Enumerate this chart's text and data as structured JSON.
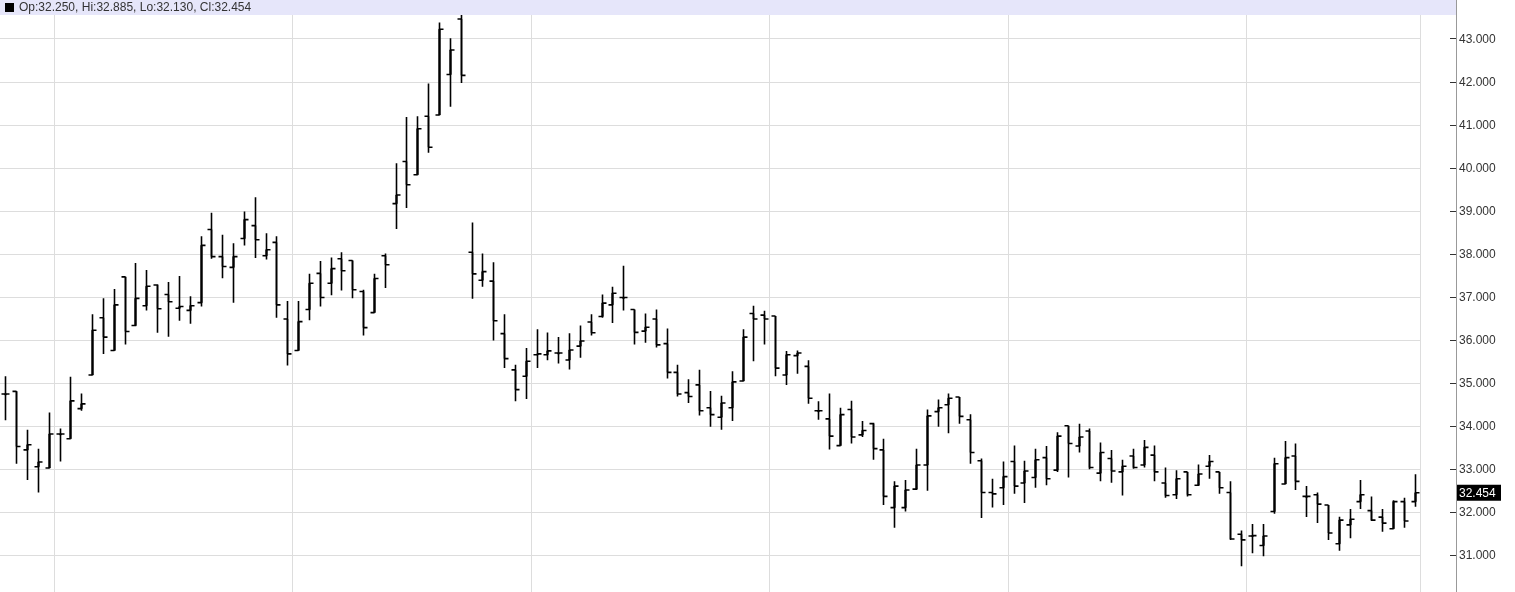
{
  "chart_data": {
    "type": "candlestick",
    "title": "Op:32.250, Hi:32.885, Lo:32.130, Cl:32.454",
    "categories": [
      null,
      null,
      null,
      null,
      null,
      null,
      null,
      null,
      null,
      null,
      null,
      null,
      null,
      null,
      null,
      null,
      null,
      null,
      null,
      null,
      null,
      null,
      null,
      null,
      null,
      null,
      null,
      null,
      null,
      null,
      null,
      null,
      null,
      null,
      null,
      null,
      null,
      null,
      null,
      null,
      null,
      null,
      null,
      null,
      null,
      null,
      null,
      null,
      null,
      null,
      null,
      null,
      null,
      null,
      null,
      null,
      null,
      null,
      null,
      null,
      null,
      null,
      null,
      null,
      null,
      null,
      null,
      null,
      null,
      null,
      null,
      null,
      null,
      null,
      null,
      null,
      null,
      null,
      null,
      null,
      null,
      null,
      null,
      null,
      null,
      null,
      null,
      null,
      null,
      null,
      null,
      null,
      null,
      null,
      null,
      null,
      null,
      null,
      null,
      null,
      null,
      null,
      null,
      null,
      null,
      null,
      null,
      null,
      null,
      null,
      null,
      null,
      null,
      null,
      null,
      null,
      null,
      null,
      null,
      null,
      null,
      null,
      null,
      null,
      null,
      null,
      null,
      null,
      null,
      null,
      null
    ],
    "ohlc": [
      [
        34.75,
        35.16,
        34.14,
        34.75
      ],
      [
        34.81,
        34.81,
        33.13,
        33.53
      ],
      [
        33.45,
        33.92,
        32.75,
        33.57
      ],
      [
        33.06,
        33.48,
        32.46,
        33.17
      ],
      [
        33.03,
        34.32,
        33.03,
        33.82
      ],
      [
        33.82,
        33.95,
        33.18,
        33.82
      ],
      [
        33.71,
        35.15,
        33.71,
        34.59
      ],
      [
        34.41,
        34.76,
        34.36,
        34.52
      ],
      [
        35.19,
        36.6,
        35.19,
        36.23
      ],
      [
        36.52,
        36.97,
        35.68,
        36.07
      ],
      [
        35.76,
        37.19,
        35.76,
        36.82
      ],
      [
        37.47,
        37.47,
        35.9,
        36.2
      ],
      [
        36.34,
        37.79,
        36.32,
        36.97
      ],
      [
        36.8,
        37.63,
        36.69,
        37.25
      ],
      [
        37.28,
        37.3,
        36.17,
        36.73
      ],
      [
        37.06,
        37.35,
        36.08,
        36.89
      ],
      [
        36.74,
        37.49,
        36.45,
        36.78
      ],
      [
        36.69,
        37.02,
        36.38,
        36.8
      ],
      [
        36.87,
        38.41,
        36.78,
        38.2
      ],
      [
        38.57,
        38.96,
        37.89,
        37.94
      ],
      [
        37.94,
        38.45,
        37.44,
        37.71
      ],
      [
        37.69,
        38.25,
        36.87,
        37.94
      ],
      [
        38.36,
        38.99,
        38.2,
        38.8
      ],
      [
        38.66,
        39.32,
        37.91,
        38.33
      ],
      [
        37.96,
        38.48,
        37.87,
        38.1
      ],
      [
        38.27,
        38.41,
        36.52,
        36.82
      ],
      [
        36.49,
        36.91,
        35.41,
        35.68
      ],
      [
        35.76,
        36.91,
        35.76,
        36.43
      ],
      [
        36.71,
        37.54,
        36.46,
        37.32
      ],
      [
        37.55,
        37.84,
        36.78,
        36.99
      ],
      [
        37.32,
        37.92,
        37.04,
        37.66
      ],
      [
        37.89,
        38.04,
        37.15,
        37.61
      ],
      [
        37.85,
        37.85,
        36.97,
        37.17
      ],
      [
        37.13,
        37.17,
        36.11,
        36.29
      ],
      [
        36.64,
        37.54,
        36.64,
        37.43
      ],
      [
        37.96,
        38.01,
        37.21,
        37.75
      ],
      [
        39.17,
        40.11,
        38.58,
        39.37
      ],
      [
        40.15,
        41.18,
        39.07,
        39.61
      ],
      [
        39.84,
        41.2,
        39.84,
        40.91
      ],
      [
        41.2,
        41.96,
        40.35,
        40.48
      ],
      [
        41.23,
        43.38,
        41.23,
        43.22
      ],
      [
        42.17,
        43.01,
        41.42,
        42.74
      ],
      [
        43.46,
        43.6,
        41.97,
        42.15
      ],
      [
        38.04,
        38.73,
        36.96,
        37.54
      ],
      [
        37.39,
        38.01,
        37.24,
        37.59
      ],
      [
        37.37,
        37.81,
        35.99,
        36.45
      ],
      [
        36.15,
        36.6,
        35.35,
        35.57
      ],
      [
        35.31,
        35.43,
        34.58,
        34.85
      ],
      [
        35.16,
        35.82,
        34.63,
        35.51
      ],
      [
        35.66,
        36.25,
        35.35,
        35.68
      ],
      [
        35.66,
        36.18,
        35.53,
        35.75
      ],
      [
        35.7,
        36.07,
        35.46,
        35.7
      ],
      [
        35.54,
        36.16,
        35.32,
        35.77
      ],
      [
        35.86,
        36.34,
        35.59,
        35.98
      ],
      [
        36.42,
        36.6,
        36.11,
        36.17
      ],
      [
        36.55,
        37.06,
        36.52,
        36.86
      ],
      [
        36.82,
        37.24,
        36.4,
        37.09
      ],
      [
        36.99,
        37.73,
        36.69,
        36.99
      ],
      [
        36.71,
        36.71,
        35.9,
        36.18
      ],
      [
        36.21,
        36.62,
        35.94,
        36.3
      ],
      [
        36.49,
        36.71,
        35.83,
        35.89
      ],
      [
        35.92,
        36.27,
        35.11,
        35.25
      ],
      [
        35.25,
        35.43,
        34.69,
        34.75
      ],
      [
        34.78,
        35.09,
        34.54,
        34.69
      ],
      [
        34.96,
        35.31,
        34.25,
        34.36
      ],
      [
        34.43,
        34.82,
        33.99,
        34.27
      ],
      [
        34.21,
        34.71,
        33.92,
        34.54
      ],
      [
        34.43,
        35.28,
        34.12,
        35.03
      ],
      [
        35.05,
        36.25,
        35.05,
        36.07
      ],
      [
        36.62,
        36.8,
        35.51,
        36.49
      ],
      [
        36.58,
        36.68,
        35.9,
        36.49
      ],
      [
        36.56,
        36.56,
        35.16,
        35.35
      ],
      [
        35.19,
        35.75,
        34.96,
        35.66
      ],
      [
        35.64,
        35.76,
        35.22,
        35.7
      ],
      [
        35.39,
        35.53,
        34.52,
        34.65
      ],
      [
        34.36,
        34.58,
        34.15,
        34.36
      ],
      [
        34.17,
        34.76,
        33.46,
        33.77
      ],
      [
        33.55,
        34.43,
        33.55,
        34.27
      ],
      [
        34.39,
        34.59,
        33.6,
        33.75
      ],
      [
        33.8,
        34.12,
        33.75,
        33.9
      ],
      [
        34.06,
        34.08,
        33.22,
        33.48
      ],
      [
        33.45,
        33.71,
        32.17,
        32.37
      ],
      [
        32.11,
        32.72,
        31.64,
        32.61
      ],
      [
        32.11,
        32.75,
        32.02,
        32.52
      ],
      [
        32.54,
        33.48,
        32.52,
        33.1
      ],
      [
        33.1,
        34.39,
        32.5,
        34.24
      ],
      [
        34.34,
        34.62,
        33.99,
        34.43
      ],
      [
        34.5,
        34.76,
        33.84,
        34.65
      ],
      [
        34.68,
        34.68,
        34.06,
        34.23
      ],
      [
        34.15,
        34.28,
        33.13,
        33.39
      ],
      [
        33.2,
        33.25,
        31.87,
        32.46
      ],
      [
        32.46,
        32.78,
        32.11,
        32.43
      ],
      [
        32.57,
        33.18,
        32.17,
        32.83
      ],
      [
        33.18,
        33.55,
        32.43,
        32.61
      ],
      [
        32.68,
        33.2,
        32.22,
        32.96
      ],
      [
        32.81,
        33.48,
        32.57,
        33.22
      ],
      [
        33.27,
        33.54,
        32.63,
        32.78
      ],
      [
        32.98,
        33.86,
        32.94,
        33.77
      ],
      [
        34.01,
        34.01,
        32.81,
        33.6
      ],
      [
        33.54,
        34.06,
        33.39,
        33.75
      ],
      [
        33.89,
        33.95,
        33.0,
        33.04
      ],
      [
        32.91,
        33.62,
        32.72,
        33.39
      ],
      [
        33.25,
        33.45,
        32.69,
        32.96
      ],
      [
        32.94,
        33.22,
        32.39,
        33.07
      ],
      [
        33.31,
        33.48,
        33.01,
        33.04
      ],
      [
        33.1,
        33.68,
        33.04,
        33.51
      ],
      [
        33.33,
        33.55,
        32.72,
        32.94
      ],
      [
        32.68,
        33.04,
        32.34,
        32.39
      ],
      [
        32.41,
        32.98,
        32.31,
        32.78
      ],
      [
        32.94,
        32.94,
        32.37,
        32.41
      ],
      [
        32.63,
        33.11,
        32.61,
        32.89
      ],
      [
        33.07,
        33.33,
        32.78,
        33.18
      ],
      [
        32.94,
        32.94,
        32.43,
        32.57
      ],
      [
        32.46,
        32.72,
        31.36,
        31.38
      ],
      [
        31.49,
        31.58,
        30.75,
        31.36
      ],
      [
        31.45,
        31.73,
        31.05,
        31.46
      ],
      [
        31.23,
        31.73,
        30.98,
        31.45
      ],
      [
        32.02,
        33.27,
        31.97,
        33.13
      ],
      [
        32.66,
        33.66,
        32.66,
        33.27
      ],
      [
        33.31,
        33.6,
        32.52,
        32.72
      ],
      [
        32.37,
        32.61,
        31.89,
        32.37
      ],
      [
        32.41,
        32.46,
        31.75,
        32.19
      ],
      [
        32.17,
        32.17,
        31.36,
        31.52
      ],
      [
        31.27,
        31.9,
        31.11,
        31.82
      ],
      [
        31.71,
        32.08,
        31.4,
        31.84
      ],
      [
        32.25,
        32.75,
        32.08,
        32.41
      ],
      [
        32.04,
        32.37,
        31.8,
        31.82
      ],
      [
        31.89,
        32.08,
        31.55,
        31.75
      ],
      [
        31.62,
        32.28,
        31.62,
        32.25
      ],
      [
        32.25,
        32.34,
        31.64,
        31.8
      ],
      [
        32.25,
        32.885,
        32.13,
        32.454
      ]
    ],
    "color": "#000000",
    "ylim": [
      30.15,
      43.9
    ],
    "yticks": [
      {
        "value": 31,
        "label": "31.000"
      },
      {
        "value": 32,
        "label": "32.000"
      },
      {
        "value": 33,
        "label": "33.000"
      },
      {
        "value": 34,
        "label": "34.000"
      },
      {
        "value": 35,
        "label": "35.000"
      },
      {
        "value": 36,
        "label": "36.000"
      },
      {
        "value": 37,
        "label": "37.000"
      },
      {
        "value": 38,
        "label": "38.000"
      },
      {
        "value": 39,
        "label": "39.000"
      },
      {
        "value": 40,
        "label": "40.000"
      },
      {
        "value": 41,
        "label": "41.000"
      },
      {
        "value": 42,
        "label": "42.000"
      },
      {
        "value": 43,
        "label": "43.000"
      }
    ],
    "grid": true,
    "tick_labels": "y",
    "annotations": [
      "32.454"
    ]
  }
}
